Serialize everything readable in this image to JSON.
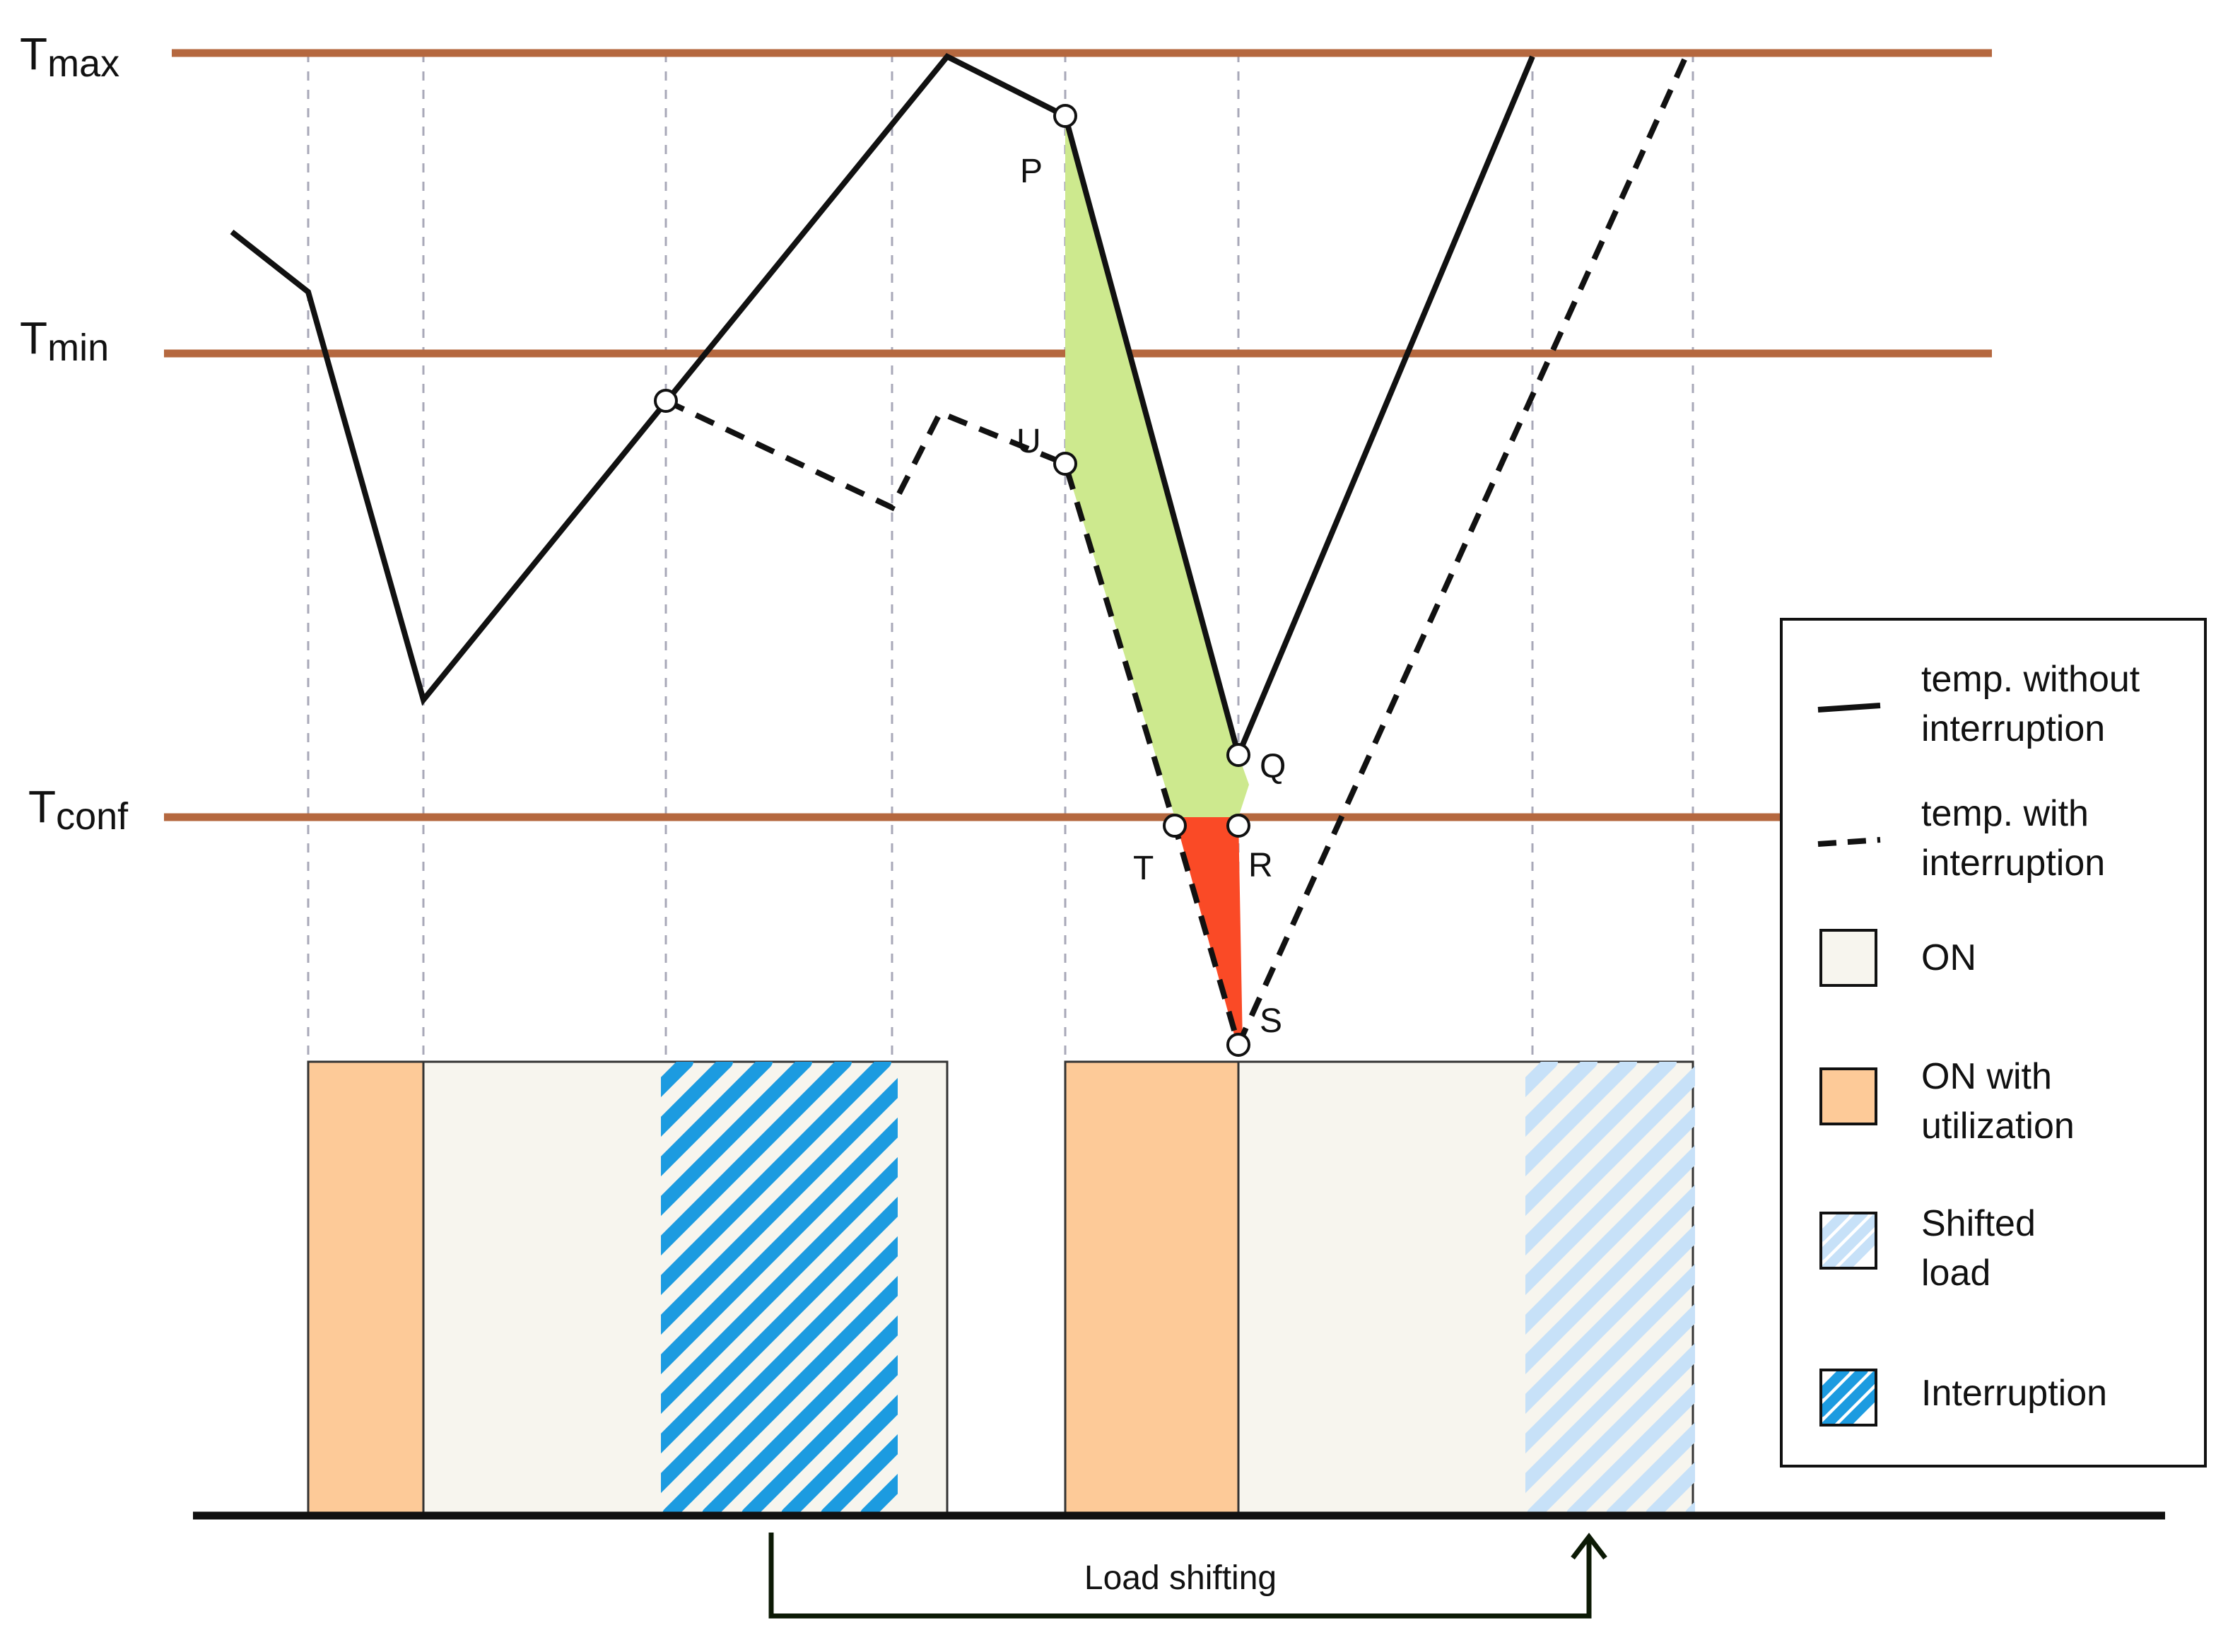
{
  "thresholds": {
    "tmax": {
      "main": "T",
      "sub": "max"
    },
    "tmin": {
      "main": "T",
      "sub": "min"
    },
    "tconf": {
      "main": "T",
      "sub": "conf"
    }
  },
  "points": {
    "p": "P",
    "u": "U",
    "q": "Q",
    "r": "R",
    "t": "T",
    "s": "S"
  },
  "legend": {
    "solid_line": [
      "temp. without",
      "interruption"
    ],
    "dashed_line": [
      "temp. with",
      "interruption"
    ],
    "on": "ON",
    "on_util": [
      "ON with",
      "utilization"
    ],
    "shifted": [
      "Shifted",
      "load"
    ],
    "interruption": "Interruption"
  },
  "load_shifting_label": "Load shifting",
  "colors": {
    "threshold_line": "#b5683f",
    "on_fill": "#f7f5ee",
    "on_utilization_fill": "#fdca98",
    "interruption_hatch": "#1c9be0",
    "shifted_hatch": "#c7e1f8",
    "green_area": "#cde98e",
    "red_area": "#fa4a26",
    "gridline": "#a8a8b8"
  }
}
